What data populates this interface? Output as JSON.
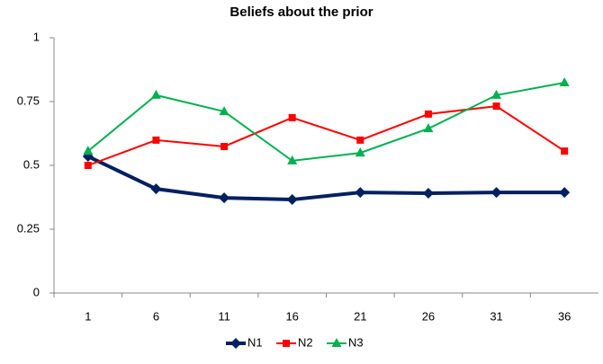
{
  "chart_data": {
    "type": "line",
    "title": "Beliefs about the prior",
    "categories": [
      1,
      6,
      11,
      16,
      21,
      26,
      31,
      36
    ],
    "series": [
      {
        "name": "N1",
        "color": "#002060",
        "marker": "diamond",
        "values": [
          0.535,
          0.408,
          0.373,
          0.366,
          0.394,
          0.391,
          0.394,
          0.394
        ]
      },
      {
        "name": "N2",
        "color": "#ff0000",
        "marker": "square",
        "values": [
          0.5,
          0.599,
          0.574,
          0.687,
          0.599,
          0.701,
          0.732,
          0.556
        ]
      },
      {
        "name": "N3",
        "color": "#00b050",
        "marker": "triangle",
        "values": [
          0.556,
          0.775,
          0.711,
          0.518,
          0.549,
          0.644,
          0.775,
          0.824
        ]
      }
    ],
    "ylim": [
      0,
      1
    ],
    "yticks": [
      0,
      0.25,
      0.5,
      0.75,
      1
    ],
    "grid": false,
    "legend": "bottom"
  }
}
